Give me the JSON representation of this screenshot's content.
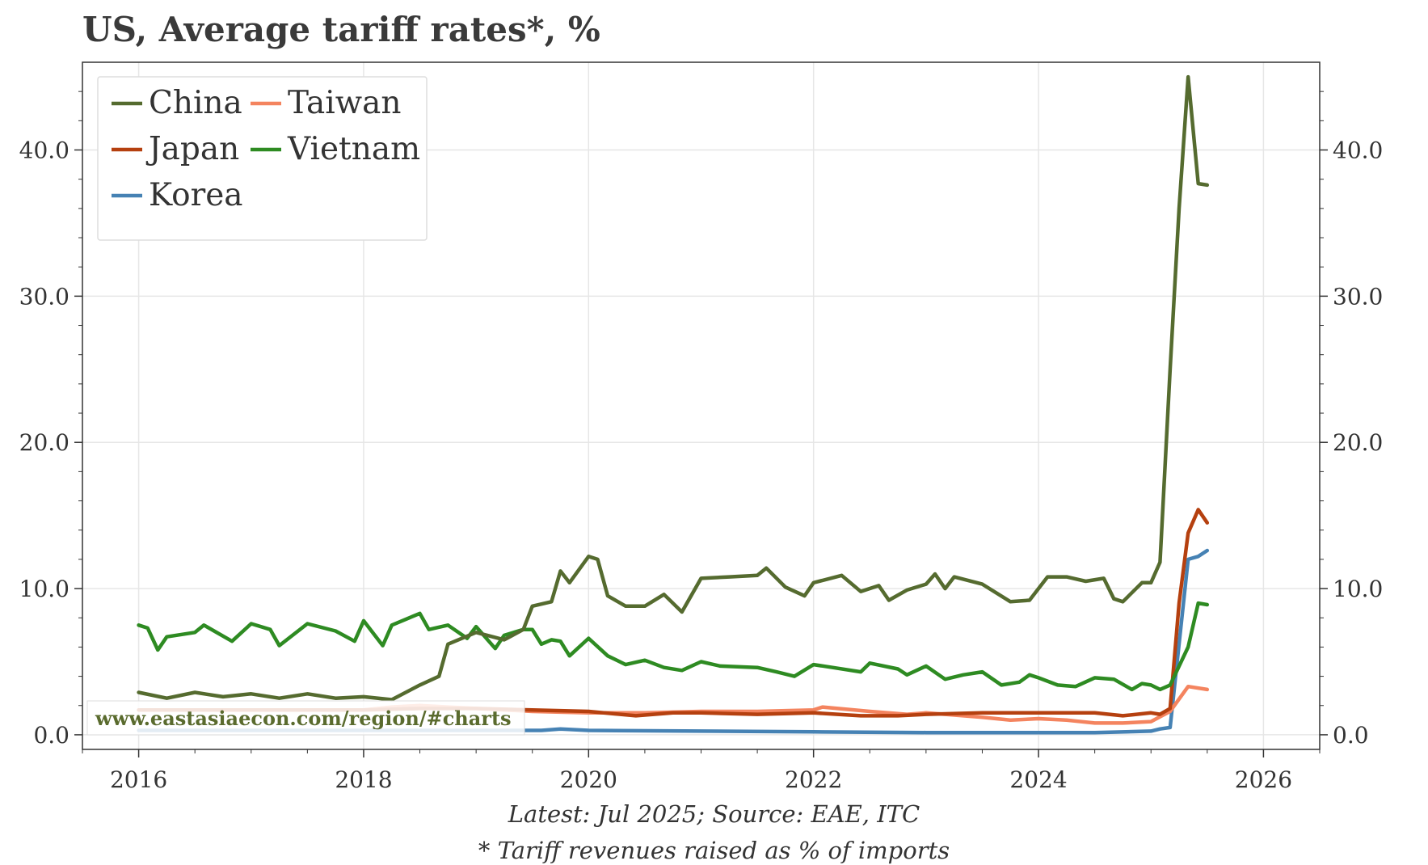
{
  "title": "US, Average tariff rates*, %",
  "source_note": "Latest: Jul 2025; Source: EAE, ITC",
  "footnote": "* Tariff revenues raised as % of imports",
  "watermark": "www.eastasiaecon.com/region/#charts",
  "colors": {
    "China": "#556b2f",
    "Taiwan": "#f4845f",
    "Japan": "#b5400f",
    "Vietnam": "#2e8b22",
    "Korea": "#4682b4"
  },
  "chart_data": {
    "type": "line",
    "x_unit": "year",
    "xlim": [
      2015.5,
      2026.5
    ],
    "ylim": [
      -1,
      46
    ],
    "x_ticks": [
      2016,
      2018,
      2020,
      2022,
      2024,
      2026
    ],
    "y_ticks": [
      0,
      10,
      20,
      30,
      40
    ],
    "y_tick_labels": [
      "0.0",
      "10.0",
      "20.0",
      "30.0",
      "40.0"
    ],
    "grid": true,
    "legend_position": "top-left",
    "legend_order": [
      "China",
      "Taiwan",
      "Japan",
      "Vietnam",
      "Korea"
    ],
    "series": [
      {
        "name": "China",
        "points": [
          [
            2016.0,
            2.9
          ],
          [
            2016.25,
            2.5
          ],
          [
            2016.5,
            2.9
          ],
          [
            2016.75,
            2.6
          ],
          [
            2017.0,
            2.8
          ],
          [
            2017.25,
            2.5
          ],
          [
            2017.5,
            2.8
          ],
          [
            2017.75,
            2.5
          ],
          [
            2018.0,
            2.6
          ],
          [
            2018.25,
            2.4
          ],
          [
            2018.5,
            3.4
          ],
          [
            2018.67,
            4.0
          ],
          [
            2018.75,
            6.2
          ],
          [
            2019.0,
            7.0
          ],
          [
            2019.25,
            6.5
          ],
          [
            2019.42,
            7.2
          ],
          [
            2019.5,
            8.8
          ],
          [
            2019.67,
            9.1
          ],
          [
            2019.75,
            11.2
          ],
          [
            2019.83,
            10.4
          ],
          [
            2020.0,
            12.2
          ],
          [
            2020.08,
            12.0
          ],
          [
            2020.17,
            9.5
          ],
          [
            2020.33,
            8.8
          ],
          [
            2020.5,
            8.8
          ],
          [
            2020.67,
            9.6
          ],
          [
            2020.83,
            8.4
          ],
          [
            2021.0,
            10.7
          ],
          [
            2021.25,
            10.8
          ],
          [
            2021.5,
            10.9
          ],
          [
            2021.58,
            11.4
          ],
          [
            2021.75,
            10.1
          ],
          [
            2021.92,
            9.5
          ],
          [
            2022.0,
            10.4
          ],
          [
            2022.25,
            10.9
          ],
          [
            2022.42,
            9.8
          ],
          [
            2022.58,
            10.2
          ],
          [
            2022.67,
            9.2
          ],
          [
            2022.83,
            9.9
          ],
          [
            2023.0,
            10.3
          ],
          [
            2023.08,
            11.0
          ],
          [
            2023.17,
            10.0
          ],
          [
            2023.25,
            10.8
          ],
          [
            2023.5,
            10.3
          ],
          [
            2023.75,
            9.1
          ],
          [
            2023.92,
            9.2
          ],
          [
            2024.0,
            10.0
          ],
          [
            2024.08,
            10.8
          ],
          [
            2024.25,
            10.8
          ],
          [
            2024.42,
            10.5
          ],
          [
            2024.58,
            10.7
          ],
          [
            2024.67,
            9.3
          ],
          [
            2024.75,
            9.1
          ],
          [
            2024.92,
            10.4
          ],
          [
            2025.0,
            10.4
          ],
          [
            2025.08,
            11.8
          ],
          [
            2025.17,
            25.0
          ],
          [
            2025.25,
            36.0
          ],
          [
            2025.33,
            45.0
          ],
          [
            2025.42,
            37.7
          ],
          [
            2025.5,
            37.6
          ]
        ]
      },
      {
        "name": "Taiwan",
        "points": [
          [
            2016.0,
            1.7
          ],
          [
            2016.5,
            1.7
          ],
          [
            2017.0,
            1.7
          ],
          [
            2017.5,
            1.7
          ],
          [
            2018.0,
            1.7
          ],
          [
            2018.25,
            1.9
          ],
          [
            2018.5,
            2.0
          ],
          [
            2018.75,
            1.9
          ],
          [
            2019.0,
            1.8
          ],
          [
            2019.5,
            1.6
          ],
          [
            2020.0,
            1.5
          ],
          [
            2020.5,
            1.5
          ],
          [
            2021.0,
            1.6
          ],
          [
            2021.5,
            1.6
          ],
          [
            2022.0,
            1.7
          ],
          [
            2022.08,
            1.9
          ],
          [
            2022.5,
            1.6
          ],
          [
            2022.83,
            1.4
          ],
          [
            2023.0,
            1.5
          ],
          [
            2023.5,
            1.2
          ],
          [
            2023.75,
            1.0
          ],
          [
            2024.0,
            1.1
          ],
          [
            2024.25,
            1.0
          ],
          [
            2024.5,
            0.8
          ],
          [
            2024.75,
            0.8
          ],
          [
            2025.0,
            0.9
          ],
          [
            2025.17,
            1.6
          ],
          [
            2025.33,
            3.3
          ],
          [
            2025.5,
            3.1
          ]
        ]
      },
      {
        "name": "Japan",
        "points": [
          [
            2016.0,
            1.7
          ],
          [
            2016.5,
            1.7
          ],
          [
            2017.0,
            1.7
          ],
          [
            2017.5,
            1.7
          ],
          [
            2018.0,
            1.7
          ],
          [
            2018.5,
            1.8
          ],
          [
            2019.0,
            1.8
          ],
          [
            2019.5,
            1.7
          ],
          [
            2020.0,
            1.6
          ],
          [
            2020.42,
            1.3
          ],
          [
            2020.75,
            1.5
          ],
          [
            2021.0,
            1.5
          ],
          [
            2021.5,
            1.4
          ],
          [
            2022.0,
            1.5
          ],
          [
            2022.42,
            1.3
          ],
          [
            2022.75,
            1.3
          ],
          [
            2023.0,
            1.4
          ],
          [
            2023.5,
            1.5
          ],
          [
            2024.0,
            1.5
          ],
          [
            2024.5,
            1.5
          ],
          [
            2024.75,
            1.3
          ],
          [
            2025.0,
            1.5
          ],
          [
            2025.08,
            1.4
          ],
          [
            2025.17,
            1.8
          ],
          [
            2025.25,
            9.0
          ],
          [
            2025.33,
            13.8
          ],
          [
            2025.42,
            15.4
          ],
          [
            2025.5,
            14.5
          ]
        ]
      },
      {
        "name": "Vietnam",
        "points": [
          [
            2016.0,
            7.5
          ],
          [
            2016.08,
            7.3
          ],
          [
            2016.17,
            5.8
          ],
          [
            2016.25,
            6.7
          ],
          [
            2016.5,
            7.0
          ],
          [
            2016.58,
            7.5
          ],
          [
            2016.83,
            6.4
          ],
          [
            2017.0,
            7.6
          ],
          [
            2017.17,
            7.2
          ],
          [
            2017.25,
            6.1
          ],
          [
            2017.5,
            7.6
          ],
          [
            2017.75,
            7.1
          ],
          [
            2017.92,
            6.4
          ],
          [
            2018.0,
            7.8
          ],
          [
            2018.17,
            6.1
          ],
          [
            2018.25,
            7.5
          ],
          [
            2018.5,
            8.3
          ],
          [
            2018.58,
            7.2
          ],
          [
            2018.75,
            7.5
          ],
          [
            2018.92,
            6.6
          ],
          [
            2019.0,
            7.4
          ],
          [
            2019.17,
            5.9
          ],
          [
            2019.25,
            6.8
          ],
          [
            2019.42,
            7.2
          ],
          [
            2019.5,
            7.2
          ],
          [
            2019.58,
            6.2
          ],
          [
            2019.67,
            6.5
          ],
          [
            2019.75,
            6.4
          ],
          [
            2019.83,
            5.4
          ],
          [
            2020.0,
            6.6
          ],
          [
            2020.17,
            5.4
          ],
          [
            2020.33,
            4.8
          ],
          [
            2020.5,
            5.1
          ],
          [
            2020.67,
            4.6
          ],
          [
            2020.83,
            4.4
          ],
          [
            2021.0,
            5.0
          ],
          [
            2021.17,
            4.7
          ],
          [
            2021.5,
            4.6
          ],
          [
            2021.67,
            4.3
          ],
          [
            2021.83,
            4.0
          ],
          [
            2022.0,
            4.8
          ],
          [
            2022.17,
            4.6
          ],
          [
            2022.42,
            4.3
          ],
          [
            2022.5,
            4.9
          ],
          [
            2022.75,
            4.5
          ],
          [
            2022.83,
            4.1
          ],
          [
            2023.0,
            4.7
          ],
          [
            2023.17,
            3.8
          ],
          [
            2023.33,
            4.1
          ],
          [
            2023.5,
            4.3
          ],
          [
            2023.67,
            3.4
          ],
          [
            2023.83,
            3.6
          ],
          [
            2023.92,
            4.1
          ],
          [
            2024.0,
            3.9
          ],
          [
            2024.17,
            3.4
          ],
          [
            2024.33,
            3.3
          ],
          [
            2024.5,
            3.9
          ],
          [
            2024.67,
            3.8
          ],
          [
            2024.83,
            3.1
          ],
          [
            2024.92,
            3.5
          ],
          [
            2025.0,
            3.4
          ],
          [
            2025.08,
            3.1
          ],
          [
            2025.17,
            3.4
          ],
          [
            2025.33,
            6.0
          ],
          [
            2025.42,
            9.0
          ],
          [
            2025.5,
            8.9
          ]
        ]
      },
      {
        "name": "Korea",
        "points": [
          [
            2016.0,
            0.3
          ],
          [
            2017.0,
            0.3
          ],
          [
            2018.0,
            0.3
          ],
          [
            2019.0,
            0.3
          ],
          [
            2019.58,
            0.3
          ],
          [
            2019.75,
            0.4
          ],
          [
            2020.0,
            0.3
          ],
          [
            2021.0,
            0.25
          ],
          [
            2022.0,
            0.2
          ],
          [
            2023.0,
            0.15
          ],
          [
            2024.0,
            0.15
          ],
          [
            2024.5,
            0.15
          ],
          [
            2025.0,
            0.25
          ],
          [
            2025.08,
            0.4
          ],
          [
            2025.17,
            0.5
          ],
          [
            2025.33,
            12.0
          ],
          [
            2025.42,
            12.2
          ],
          [
            2025.5,
            12.6
          ]
        ]
      }
    ]
  }
}
